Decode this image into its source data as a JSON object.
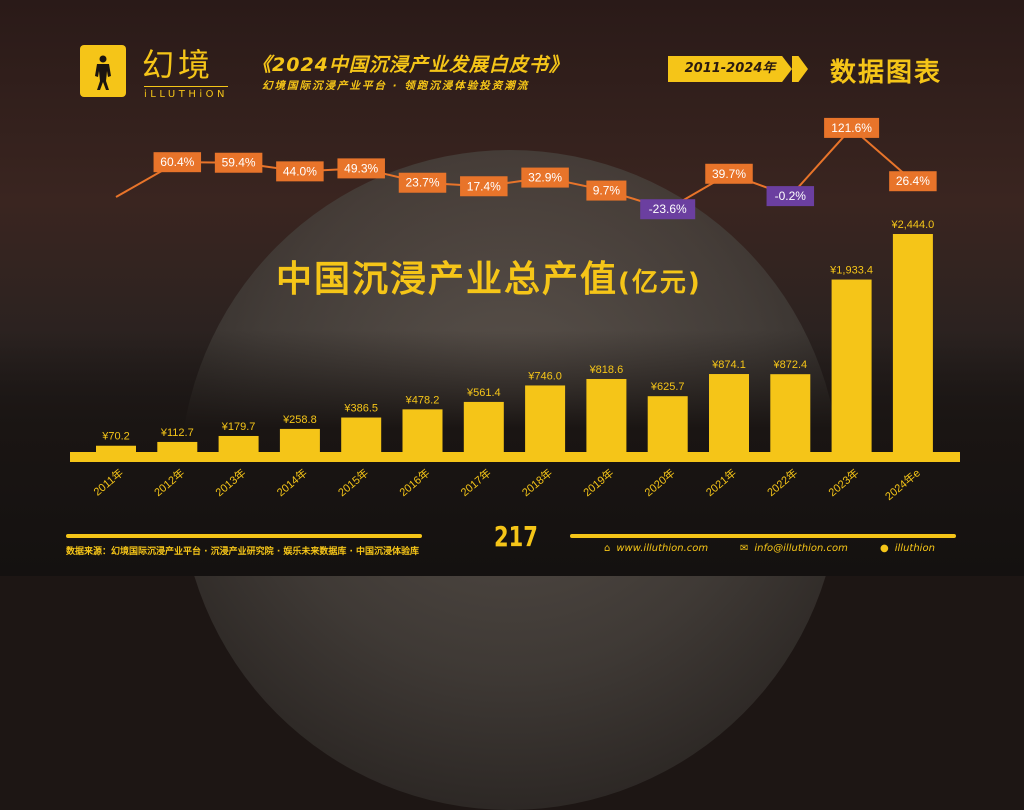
{
  "header": {
    "brand_cn": "幻境",
    "brand_en": "iLLUTHiON",
    "title": "《2024中国沉浸产业发展白皮书》",
    "subtitle": "幻境国际沉浸产业平台 · 领跑沉浸体验投资潮流",
    "range": "2011-2024年",
    "section": "数据图表"
  },
  "footer": {
    "source": "数据来源：幻境国际沉浸产业平台 · 沉浸产业研究院 · 娱乐未来数据库 · 中国沉浸体验库",
    "page": "217",
    "website": "www.illuthion.com",
    "email": "info@illuthion.com",
    "wechat": "illuthion"
  },
  "colors": {
    "bar": "#f5c518",
    "growth_positive": "#e8742a",
    "growth_negative": "#6b3fa0",
    "line": "#e8742a"
  },
  "chart_data": {
    "type": "bar",
    "title": "中国沉浸产业总产值",
    "unit": "(亿元)",
    "categories": [
      "2011年",
      "2012年",
      "2013年",
      "2014年",
      "2015年",
      "2016年",
      "2017年",
      "2018年",
      "2019年",
      "2020年",
      "2021年",
      "2022年",
      "2023年",
      "2024年e"
    ],
    "values": [
      70.2,
      112.7,
      179.7,
      258.8,
      386.5,
      478.2,
      561.4,
      746.0,
      818.6,
      625.7,
      874.1,
      872.4,
      1933.4,
      2444.0
    ],
    "value_labels": [
      "¥70.2",
      "¥112.7",
      "¥179.7",
      "¥258.8",
      "¥386.5",
      "¥478.2",
      "¥561.4",
      "¥746.0",
      "¥818.6",
      "¥625.7",
      "¥874.1",
      "¥872.4",
      "¥1,933.4",
      "¥2,444.0"
    ],
    "growth": {
      "type": "line",
      "unit": "%",
      "values": [
        null,
        60.4,
        59.4,
        44.0,
        49.3,
        23.7,
        17.4,
        32.9,
        9.7,
        -23.6,
        39.7,
        -0.2,
        121.6,
        26.4
      ],
      "labels": [
        "",
        "60.4%",
        "59.4%",
        "44.0%",
        "49.3%",
        "23.7%",
        "17.4%",
        "32.9%",
        "9.7%",
        "-23.6%",
        "39.7%",
        "-0.2%",
        "121.6%",
        "26.4%"
      ]
    },
    "ylim": [
      0,
      2500
    ],
    "grid": false
  }
}
